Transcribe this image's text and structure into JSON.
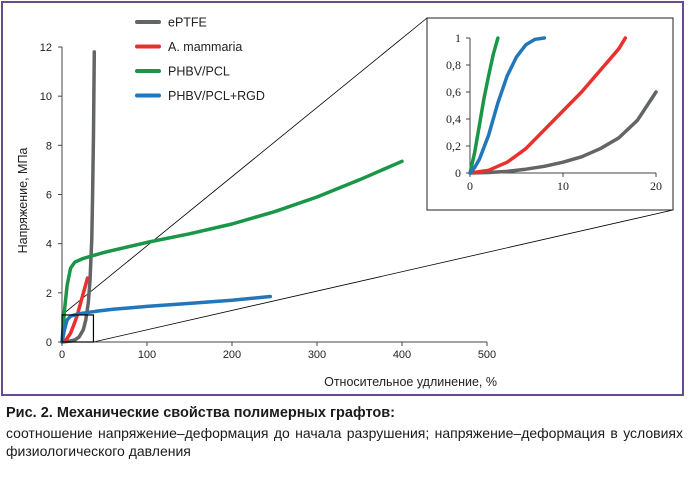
{
  "chart_data": [
    {
      "type": "line",
      "title": "",
      "xlabel": "Относительное удлинение, %",
      "ylabel": "Напряжение, МПа",
      "xlim": [
        0,
        500
      ],
      "ylim": [
        0,
        12
      ],
      "xticks": [
        "0",
        "100",
        "200",
        "300",
        "400",
        "500"
      ],
      "yticks": [
        "0",
        "2",
        "4",
        "6",
        "8",
        "10",
        "12"
      ],
      "legend_position": "top-left",
      "grid": false,
      "series": [
        {
          "name": "ePTFE",
          "color": "#636466",
          "points": [
            [
              0,
              0
            ],
            [
              5,
              0.02
            ],
            [
              10,
              0.04
            ],
            [
              15,
              0.08
            ],
            [
              20,
              0.2
            ],
            [
              25,
              0.5
            ],
            [
              28,
              0.9
            ],
            [
              31,
              1.6
            ],
            [
              33,
              2.5
            ],
            [
              35,
              4.2
            ],
            [
              36,
              6
            ],
            [
              37,
              8.5
            ],
            [
              38,
              11.8
            ]
          ]
        },
        {
          "name": "A. mammaria",
          "color": "#e8312f",
          "points": [
            [
              0,
              0
            ],
            [
              5,
              0.1
            ],
            [
              10,
              0.35
            ],
            [
              15,
              0.8
            ],
            [
              18,
              1.1
            ],
            [
              22,
              1.6
            ],
            [
              26,
              2.1
            ],
            [
              30,
              2.6
            ]
          ]
        },
        {
          "name": "PHBV/PCL",
          "color": "#1a9648",
          "points": [
            [
              0,
              0
            ],
            [
              3,
              1.3
            ],
            [
              6,
              2.3
            ],
            [
              10,
              3
            ],
            [
              15,
              3.25
            ],
            [
              25,
              3.4
            ],
            [
              50,
              3.65
            ],
            [
              100,
              4.05
            ],
            [
              150,
              4.4
            ],
            [
              200,
              4.8
            ],
            [
              250,
              5.3
            ],
            [
              300,
              5.9
            ],
            [
              350,
              6.6
            ],
            [
              400,
              7.35
            ]
          ]
        },
        {
          "name": "PHBV/PCL+RGD",
          "color": "#2277bb",
          "points": [
            [
              0,
              0
            ],
            [
              3,
              0.5
            ],
            [
              6,
              0.9
            ],
            [
              10,
              1.05
            ],
            [
              20,
              1.15
            ],
            [
              40,
              1.25
            ],
            [
              60,
              1.33
            ],
            [
              100,
              1.45
            ],
            [
              150,
              1.57
            ],
            [
              200,
              1.7
            ],
            [
              245,
              1.85
            ]
          ]
        }
      ]
    },
    {
      "type": "line",
      "title": "",
      "xlabel": "",
      "ylabel": "",
      "xlim": [
        0,
        20
      ],
      "ylim": [
        0,
        1
      ],
      "xticks": [
        "0",
        "10",
        "20"
      ],
      "yticks": [
        "0",
        "0,2",
        "0,4",
        "0,6",
        "0,8",
        "1"
      ],
      "grid": false,
      "series": [
        {
          "name": "ePTFE",
          "color": "#636466",
          "points": [
            [
              0,
              0
            ],
            [
              2,
              0.004
            ],
            [
              4,
              0.012
            ],
            [
              6,
              0.028
            ],
            [
              8,
              0.05
            ],
            [
              10,
              0.08
            ],
            [
              12,
              0.12
            ],
            [
              14,
              0.18
            ],
            [
              16,
              0.26
            ],
            [
              18,
              0.39
            ],
            [
              20,
              0.6
            ]
          ]
        },
        {
          "name": "A. mammaria",
          "color": "#e8312f",
          "points": [
            [
              0,
              0
            ],
            [
              2,
              0.02
            ],
            [
              4,
              0.08
            ],
            [
              6,
              0.18
            ],
            [
              8,
              0.32
            ],
            [
              10,
              0.46
            ],
            [
              12,
              0.6
            ],
            [
              14,
              0.76
            ],
            [
              16,
              0.92
            ],
            [
              16.7,
              1
            ]
          ]
        },
        {
          "name": "PHBV/PCL",
          "color": "#1a9648",
          "points": [
            [
              0,
              0
            ],
            [
              0.5,
              0.15
            ],
            [
              1,
              0.35
            ],
            [
              1.5,
              0.55
            ],
            [
              2,
              0.72
            ],
            [
              2.5,
              0.88
            ],
            [
              3,
              1
            ]
          ]
        },
        {
          "name": "PHBV/PCL+RGD",
          "color": "#2277bb",
          "points": [
            [
              0,
              0
            ],
            [
              0.5,
              0.04
            ],
            [
              1,
              0.1
            ],
            [
              2,
              0.28
            ],
            [
              3,
              0.52
            ],
            [
              4,
              0.72
            ],
            [
              5,
              0.86
            ],
            [
              6,
              0.95
            ],
            [
              7,
              0.99
            ],
            [
              8,
              1
            ]
          ]
        }
      ]
    }
  ],
  "caption": {
    "title": "Рис. 2. Механические свойства полимерных графтов:",
    "body": "соотношение напряжение–деформация до начала разрушения; напряжение–деформация в условиях физиологического давления"
  }
}
